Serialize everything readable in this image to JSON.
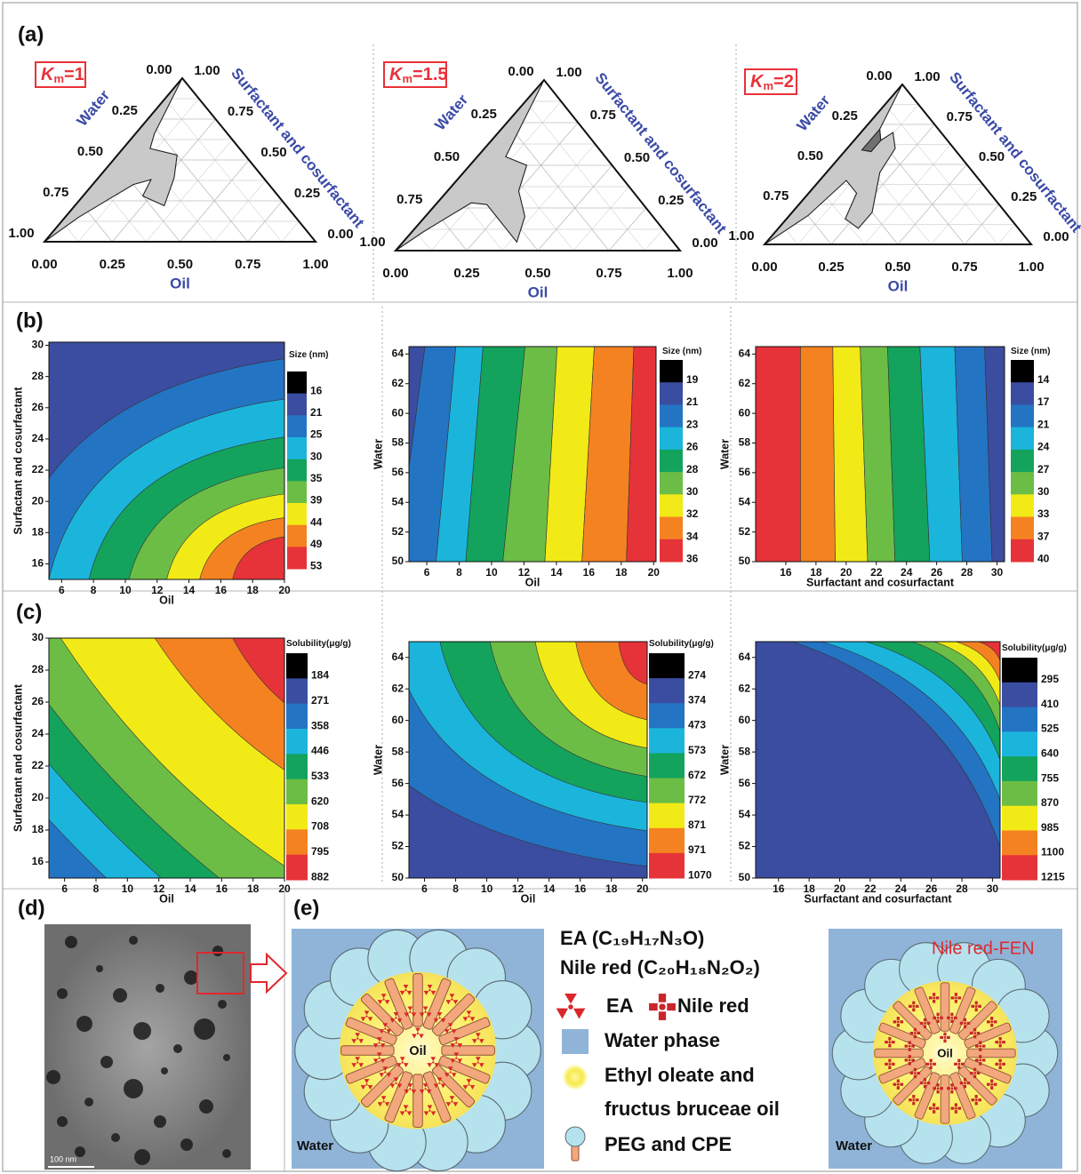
{
  "figure": {
    "panel_labels": [
      "(a)",
      "(b)",
      "(c)",
      "(d)",
      "(e)"
    ],
    "contour_colors": [
      "#000000",
      "#3b4da0",
      "#2474c4",
      "#1bb5dc",
      "#13a35c",
      "#6cbd45",
      "#f2ea16",
      "#f58220",
      "#e63339"
    ],
    "ternary": [
      {
        "km": {
          "symbol": "K",
          "subscript": "m",
          "value": "=1"
        },
        "water_label": "Water",
        "oil_label": "Oil",
        "surfactant_label": "Surfactant and cosurfactant",
        "water_ticks": [
          "0.00",
          "0.25",
          "0.50",
          "0.75",
          "1.00"
        ],
        "surfactant_ticks": [
          "0.00",
          "0.25",
          "0.50",
          "0.75",
          "1.00"
        ],
        "oil_ticks": [
          "0.00",
          "0.25",
          "0.50",
          "0.75",
          "1.00"
        ]
      },
      {
        "km": {
          "symbol": "K",
          "subscript": "m",
          "value": "=1.5"
        },
        "water_label": "Water",
        "oil_label": "Oil",
        "surfactant_label": "Surfactant and cosurfactant",
        "water_ticks": [
          "0.00",
          "0.25",
          "0.50",
          "0.75",
          "1.00"
        ],
        "surfactant_ticks": [
          "0.00",
          "0.25",
          "0.50",
          "0.75",
          "1.00"
        ],
        "oil_ticks": [
          "0.00",
          "0.25",
          "0.50",
          "0.75",
          "1.00"
        ]
      },
      {
        "km": {
          "symbol": "K",
          "subscript": "m",
          "value": "=2"
        },
        "water_label": "Water",
        "oil_label": "Oil",
        "surfactant_label": "Surfactant and cosurfactant",
        "water_ticks": [
          "0.00",
          "0.25",
          "0.50",
          "0.75",
          "1.00"
        ],
        "surfactant_ticks": [
          "0.00",
          "0.25",
          "0.50",
          "0.75",
          "1.00"
        ],
        "oil_ticks": [
          "0.00",
          "0.25",
          "0.50",
          "0.75",
          "1.00"
        ]
      }
    ],
    "size_contours": [
      {
        "xlabel": "Oil",
        "ylabel": "Surfactant  and cosurfactant",
        "xlim": [
          5.2,
          20
        ],
        "ylim": [
          15,
          30.2
        ],
        "xticks": [
          6,
          8,
          10,
          12,
          14,
          16,
          18,
          20
        ],
        "yticks": [
          16,
          18,
          20,
          22,
          24,
          26,
          28,
          30
        ],
        "colorbar_title": "Size (nm)",
        "levels": [
          16,
          21,
          25,
          30,
          35,
          39,
          44,
          49,
          53
        ]
      },
      {
        "xlabel": "Oil",
        "ylabel": "Water",
        "xlim": [
          4.9,
          20.15
        ],
        "ylim": [
          50,
          64.5
        ],
        "xticks": [
          6,
          8,
          10,
          12,
          14,
          16,
          18,
          20
        ],
        "yticks": [
          50,
          52,
          54,
          56,
          58,
          60,
          62,
          64
        ],
        "colorbar_title": "Size (nm)",
        "levels": [
          19,
          21,
          23,
          26,
          28,
          30,
          32,
          34,
          36
        ]
      },
      {
        "xlabel": "Surfactant and cosurfactant",
        "ylabel": "Water",
        "xlim": [
          14,
          30.5
        ],
        "ylim": [
          50,
          64.5
        ],
        "xticks": [
          16,
          18,
          20,
          22,
          24,
          26,
          28,
          30
        ],
        "yticks": [
          50,
          52,
          54,
          56,
          58,
          60,
          62,
          64
        ],
        "colorbar_title": "Size (nm)",
        "levels": [
          14,
          17,
          21,
          24,
          27,
          30,
          33,
          37,
          40
        ]
      }
    ],
    "solubility_contours": [
      {
        "xlabel": "Oil",
        "ylabel": "Surfactant  and cosurfactant",
        "xlim": [
          5,
          20
        ],
        "ylim": [
          15,
          30
        ],
        "xticks": [
          6,
          8,
          10,
          12,
          14,
          16,
          18,
          20
        ],
        "yticks": [
          16,
          18,
          20,
          22,
          24,
          26,
          28,
          30
        ],
        "colorbar_title": "Solubility(μg/g)",
        "levels": [
          184,
          271,
          358,
          446,
          533,
          620,
          708,
          795,
          882
        ]
      },
      {
        "xlabel": "Oil",
        "ylabel": "Water",
        "xlim": [
          5,
          20.3
        ],
        "ylim": [
          50,
          65
        ],
        "xticks": [
          6,
          8,
          10,
          12,
          14,
          16,
          18,
          20
        ],
        "yticks": [
          50,
          52,
          54,
          56,
          58,
          60,
          62,
          64
        ],
        "colorbar_title": "Solubility(μg/g)",
        "levels": [
          274,
          374,
          473,
          573,
          672,
          772,
          871,
          971,
          1070
        ]
      },
      {
        "xlabel": "Surfactant and cosurfactant",
        "ylabel": "Water",
        "xlim": [
          14.5,
          30.5
        ],
        "ylim": [
          50,
          65
        ],
        "xticks": [
          16,
          18,
          20,
          22,
          24,
          26,
          28,
          30
        ],
        "yticks": [
          50,
          52,
          54,
          56,
          58,
          60,
          62,
          64
        ],
        "colorbar_title": "Solubility(μg/g)",
        "levels": [
          295,
          410,
          525,
          640,
          755,
          870,
          985,
          1100,
          1215
        ]
      }
    ],
    "tem": {
      "scale_bar": "100 nm"
    },
    "schematic": {
      "left_core": "Oil",
      "left_medium": "Water",
      "right_core": "Oil",
      "right_medium": "Water",
      "right_title": "Nile red-FEN",
      "legend": {
        "ea_formula": "EA (C₁₉H₁₇N₃O)",
        "nile_formula": "Nile red (C₂₀H₁₈N₂O₂)",
        "ea": "EA",
        "nile": "Nile red",
        "water": "Water phase",
        "oil_line1": "Ethyl oleate and",
        "oil_line2": "fructus bruceae oil",
        "peg": "PEG and CPE"
      }
    }
  }
}
